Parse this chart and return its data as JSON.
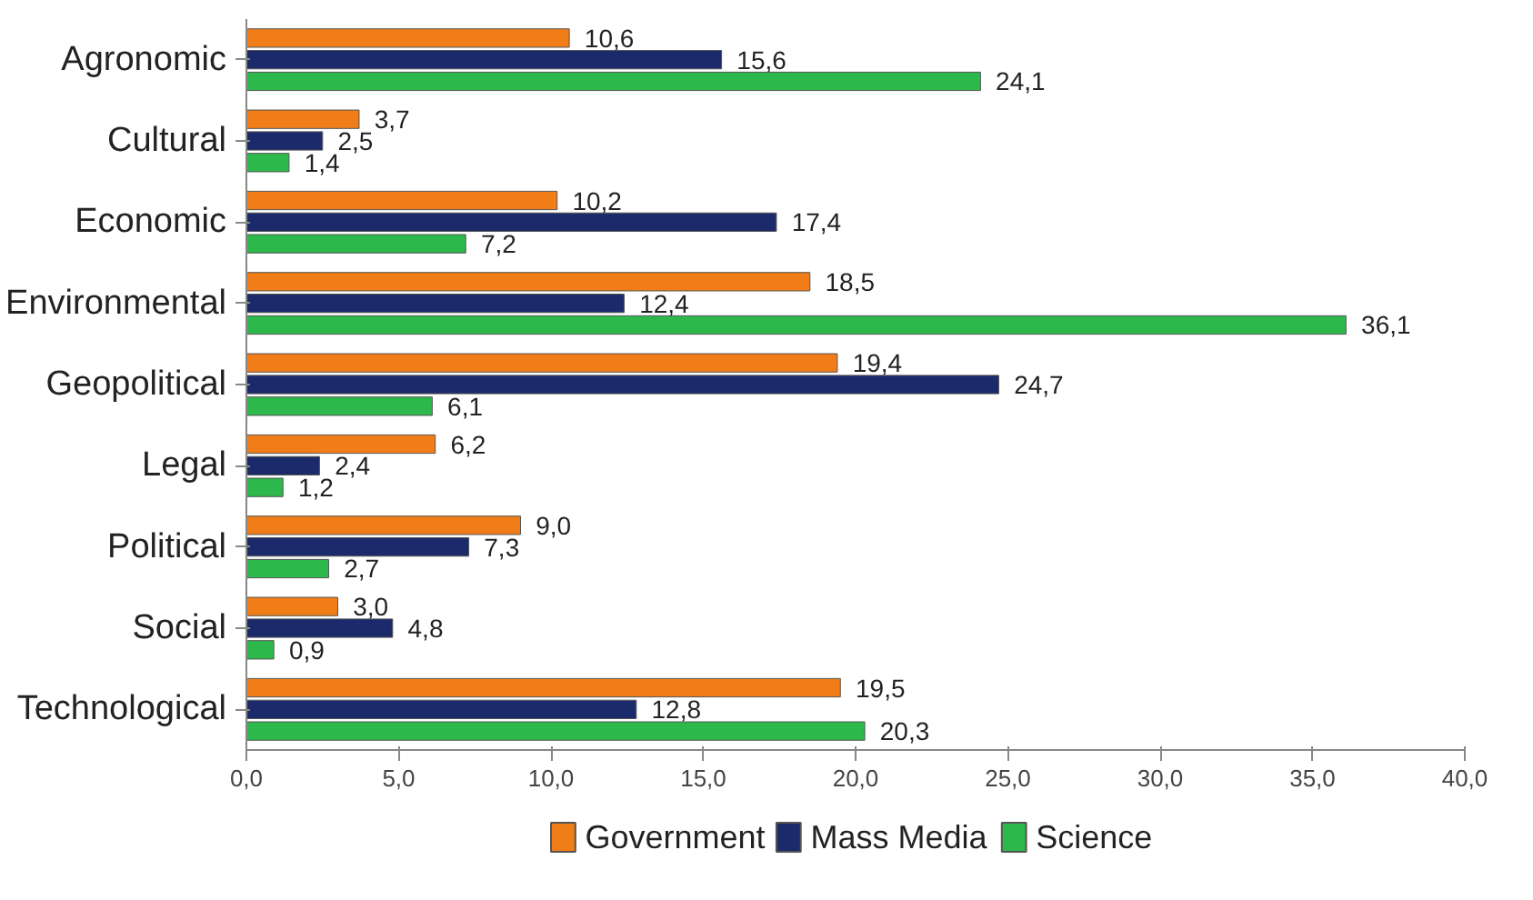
{
  "chart_data": {
    "type": "bar",
    "orientation": "horizontal",
    "categories": [
      "Agronomic",
      "Cultural",
      "Economic",
      "Environmental",
      "Geopolitical",
      "Legal",
      "Political",
      "Social",
      "Technological"
    ],
    "series": [
      {
        "name": "Government",
        "color": "#f07d18",
        "values": [
          10.6,
          3.7,
          10.2,
          18.5,
          19.4,
          6.2,
          9.0,
          3.0,
          19.5
        ],
        "value_labels": [
          "10,6",
          "3,7",
          "10,2",
          "18,5",
          "19,4",
          "6,2",
          "9,0",
          "3,0",
          "19,5"
        ]
      },
      {
        "name": "Mass Media",
        "color": "#1b2a6b",
        "values": [
          15.6,
          2.5,
          17.4,
          12.4,
          24.7,
          2.4,
          7.3,
          4.8,
          12.8
        ],
        "value_labels": [
          "15,6",
          "2,5",
          "17,4",
          "12,4",
          "24,7",
          "2,4",
          "7,3",
          "4,8",
          "12,8"
        ]
      },
      {
        "name": "Science",
        "color": "#2db84b",
        "values": [
          24.1,
          1.4,
          7.2,
          36.1,
          6.1,
          1.2,
          2.7,
          0.9,
          20.3
        ],
        "value_labels": [
          "24,1",
          "1,4",
          "7,2",
          "36,1",
          "6,1",
          "1,2",
          "2,7",
          "0,9",
          "20,3"
        ]
      }
    ],
    "xlim": [
      0,
      40
    ],
    "xticks": [
      {
        "value": 0,
        "label": "0,0"
      },
      {
        "value": 5,
        "label": "5,0"
      },
      {
        "value": 10,
        "label": "10,0"
      },
      {
        "value": 15,
        "label": "15,0"
      },
      {
        "value": 20,
        "label": "20,0"
      },
      {
        "value": 25,
        "label": "25,0"
      },
      {
        "value": 30,
        "label": "30,0"
      },
      {
        "value": 35,
        "label": "35,0"
      },
      {
        "value": 40,
        "label": "40,0"
      }
    ],
    "grid": false,
    "legend": "bottom"
  }
}
